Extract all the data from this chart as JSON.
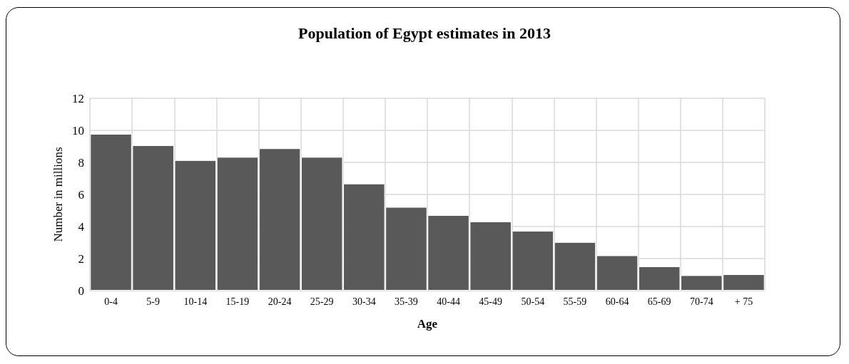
{
  "chart_data": {
    "type": "bar",
    "title": "Population of Egypt estimates in 2013",
    "xlabel": "Age",
    "ylabel": "Number in millions",
    "categories": [
      "0-4",
      "5-9",
      "10-14",
      "15-19",
      "20-24",
      "25-29",
      "30-34",
      "35-39",
      "40-44",
      "45-49",
      "50-54",
      "55-59",
      "60-64",
      "65-69",
      "70-74",
      "+ 75"
    ],
    "values": [
      9.78,
      9.07,
      8.14,
      8.34,
      8.88,
      8.34,
      6.68,
      5.22,
      4.71,
      4.31,
      3.73,
      3.03,
      2.2,
      1.51,
      0.96,
      1.02
    ],
    "color": "#595959",
    "ylim": [
      0,
      12
    ],
    "yticks": [
      0,
      2,
      4,
      6,
      8,
      10,
      12
    ],
    "grid": true
  }
}
